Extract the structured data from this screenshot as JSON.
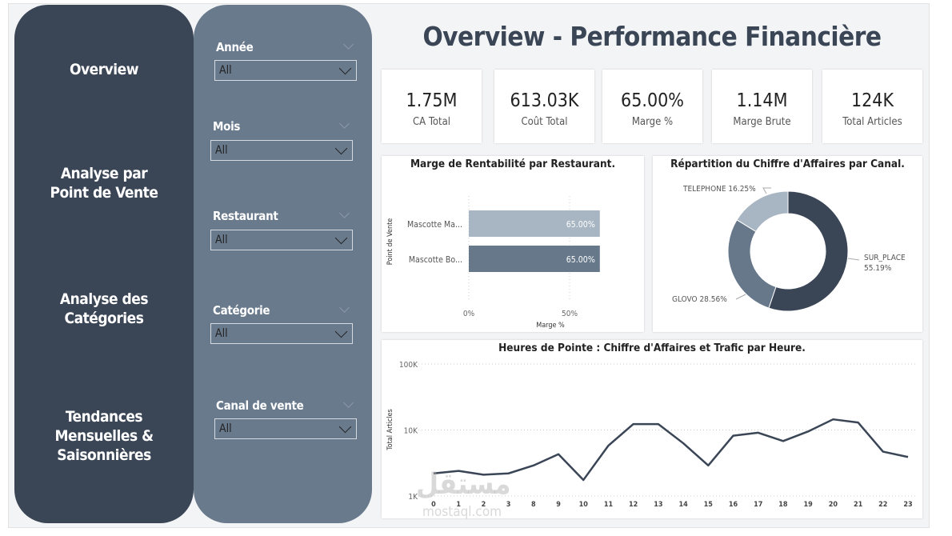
{
  "nav": {
    "items": [
      {
        "label_lines": [
          "Overview"
        ]
      },
      {
        "label_lines": [
          "Analyse par",
          "Point de Vente"
        ]
      },
      {
        "label_lines": [
          "Analyse des",
          "Catégories"
        ]
      },
      {
        "label_lines": [
          "Tendances",
          "Mensuelles &",
          "Saisonnières"
        ]
      }
    ]
  },
  "filters": [
    {
      "label": "Année",
      "value": "All"
    },
    {
      "label": "Mois",
      "value": "All"
    },
    {
      "label": "Restaurant",
      "value": "All"
    },
    {
      "label": "Catégorie",
      "value": "All"
    },
    {
      "label": "Canal de vente",
      "value": "All"
    }
  ],
  "header": {
    "title": "Overview - Performance Financière"
  },
  "kpis": [
    {
      "value": "1.75M",
      "label": "CA Total"
    },
    {
      "value": "613.03K",
      "label": "Coût Total"
    },
    {
      "value": "65.00%",
      "label": "Marge %"
    },
    {
      "value": "1.14M",
      "label": "Marge Brute"
    },
    {
      "value": "124K",
      "label": "Total Articles"
    }
  ],
  "colors": {
    "nav": "#3a4556",
    "filters": "#6a7a8d",
    "dark": "#3a4556",
    "mid": "#66788a",
    "light": "#a8b5c2"
  },
  "watermark": {
    "arabic": "مستقل",
    "latin": "mostaql.com"
  },
  "chart_data": [
    {
      "type": "bar",
      "orientation": "horizontal",
      "title": "Marge de Rentabilité par Restaurant.",
      "xlabel": "Marge %",
      "ylabel": "Point de Vente",
      "categories": [
        "Mascotte Ma...",
        "Mascotte Bo..."
      ],
      "values": [
        65.0,
        65.0
      ],
      "data_labels": [
        "65.00%",
        "65.00%"
      ],
      "x_ticks": [
        "0%",
        "50%"
      ],
      "xlim": [
        0,
        65
      ],
      "bar_colors": [
        "#a8b5c2",
        "#66788a"
      ]
    },
    {
      "type": "pie",
      "donut": true,
      "title": "Répartition du Chiffre d'Affaires par Canal.",
      "slices": [
        {
          "name": "SUR_PLACE",
          "value": 55.19,
          "label": "55.19%",
          "color": "#3a4556"
        },
        {
          "name": "GLOVO",
          "value": 28.56,
          "label": "28.56%",
          "color": "#66788a"
        },
        {
          "name": "TELEPHONE",
          "value": 16.25,
          "label": "16.25%",
          "color": "#a8b5c2"
        }
      ]
    },
    {
      "type": "line",
      "title": "Heures de Pointe : Chiffre d'Affaires et Trafic par Heure.",
      "ylabel": "Total Articles",
      "yscale": "log",
      "ylim": [
        1000,
        100000
      ],
      "y_ticks": [
        "1K",
        "10K",
        "100K"
      ],
      "grid": true,
      "x": [
        "0",
        "1",
        "2",
        "3",
        "8",
        "9",
        "10",
        "11",
        "12",
        "13",
        "14",
        "15",
        "16",
        "17",
        "18",
        "19",
        "20",
        "21",
        "22",
        "23"
      ],
      "values": [
        2200,
        2400,
        2100,
        2200,
        2900,
        4300,
        1750,
        5800,
        12300,
        12300,
        6300,
        2900,
        8200,
        9100,
        6800,
        9500,
        14500,
        13000,
        4700,
        3900
      ],
      "color": "#3a4556"
    }
  ]
}
